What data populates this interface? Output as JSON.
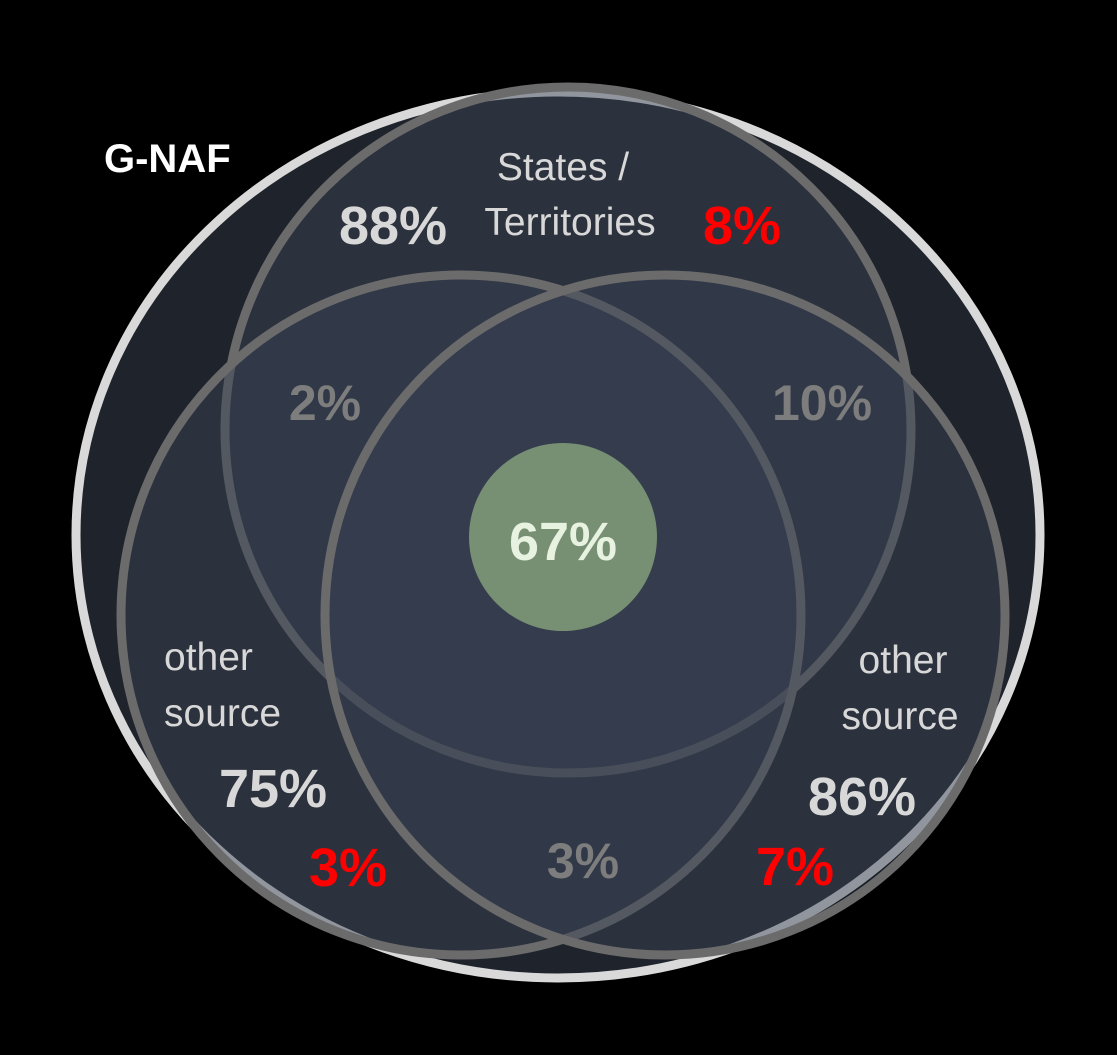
{
  "outer_label": "G-NAF",
  "sets": {
    "top": {
      "label_line1": "States /",
      "label_line2": "Territories",
      "coverage": "88%",
      "unique": "8%"
    },
    "left": {
      "label_line1": "other",
      "label_line2": "source",
      "coverage": "75%",
      "unique": "3%"
    },
    "right": {
      "label_line1": "other",
      "label_line2": "source",
      "coverage": "86%",
      "unique": "7%"
    }
  },
  "overlaps": {
    "top_left": "2%",
    "top_right": "10%",
    "left_right": "3%",
    "all_three": "67%"
  },
  "colors": {
    "background": "#000000",
    "outer_fill": "#1f232b",
    "outer_stroke": "#d9d9d9",
    "circle_fill": "#2c3340",
    "circle_stroke": "#6b6b6b",
    "center_fill": "#778f73",
    "label_white": "#ffffff",
    "label_light": "#d8d8d8",
    "label_gray": "#7d7d7d",
    "accent_red": "#ff0000",
    "center_text": "#e8f2e0"
  }
}
